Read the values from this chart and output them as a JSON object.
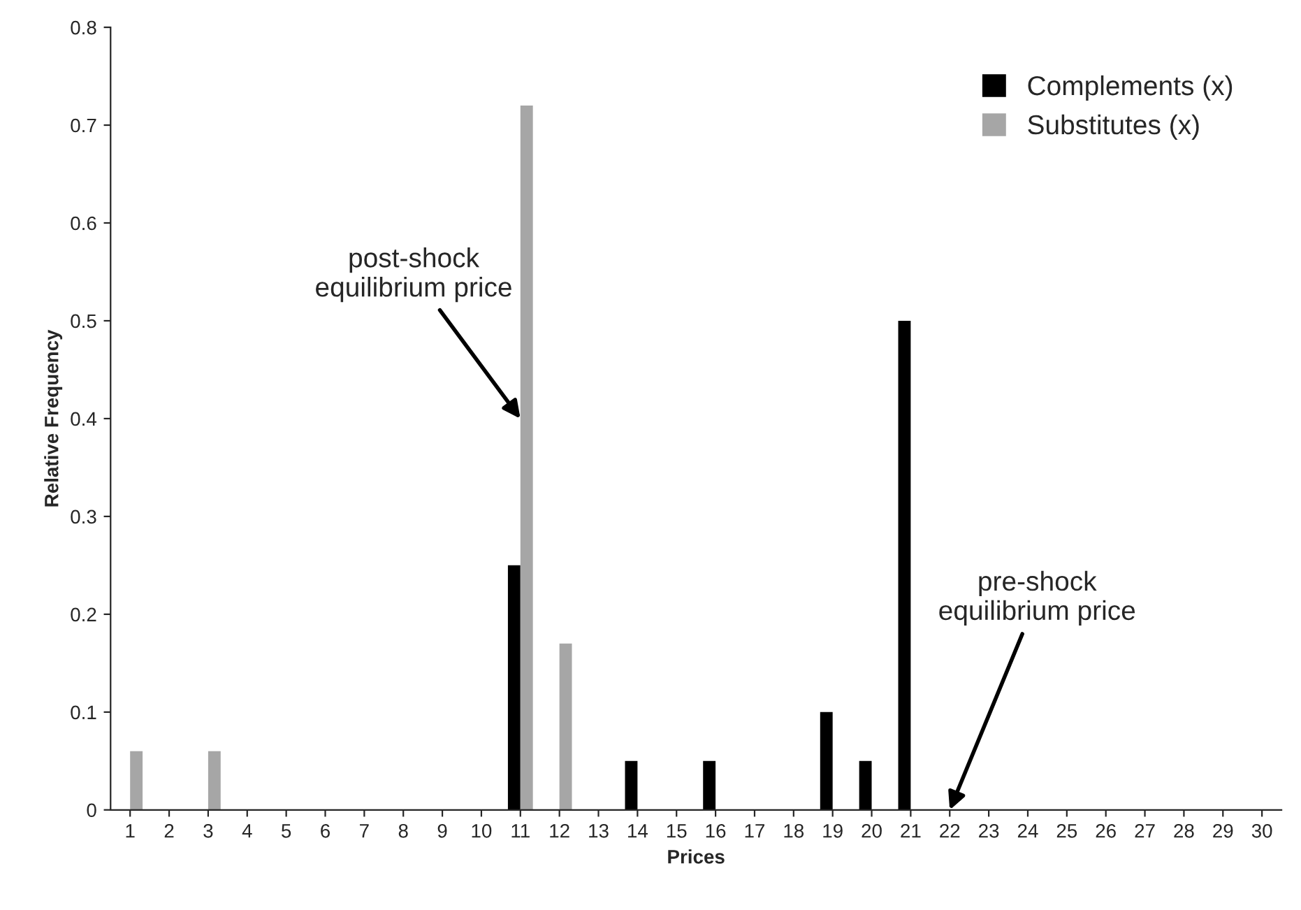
{
  "chart_data": {
    "type": "bar",
    "xlabel": "Prices",
    "ylabel": "Relative Frequency",
    "categories": [
      "1",
      "2",
      "3",
      "4",
      "5",
      "6",
      "7",
      "8",
      "9",
      "10",
      "11",
      "12",
      "13",
      "14",
      "15",
      "16",
      "17",
      "18",
      "19",
      "20",
      "21",
      "22",
      "23",
      "24",
      "25",
      "26",
      "27",
      "28",
      "29",
      "30"
    ],
    "series": [
      {
        "name": "Complements (x)",
        "color": "#000000",
        "values": [
          0,
          0,
          0,
          0,
          0,
          0,
          0,
          0,
          0,
          0,
          0.25,
          0,
          0,
          0.05,
          0,
          0.05,
          0,
          0,
          0.1,
          0.05,
          0.5,
          0,
          0,
          0,
          0,
          0,
          0,
          0,
          0,
          0
        ]
      },
      {
        "name": "Substitutes (x)",
        "color": "#a6a6a6",
        "values": [
          0.06,
          0,
          0.06,
          0,
          0,
          0,
          0,
          0,
          0,
          0,
          0.72,
          0.17,
          0,
          0,
          0,
          0,
          0,
          0,
          0,
          0,
          0,
          0,
          0,
          0,
          0,
          0,
          0,
          0,
          0,
          0
        ]
      }
    ],
    "ylim": [
      0,
      0.8
    ],
    "yticks": [
      0,
      0.1,
      0.2,
      0.3,
      0.4,
      0.5,
      0.6,
      0.7,
      0.8
    ],
    "grid": false,
    "legend": "top right",
    "annotations": [
      {
        "text": "post-shock\nequilibrium price",
        "x": "11",
        "y": 0.4
      },
      {
        "text": "pre-shock\nequilibrium price",
        "x": "22",
        "y": 0
      }
    ]
  }
}
